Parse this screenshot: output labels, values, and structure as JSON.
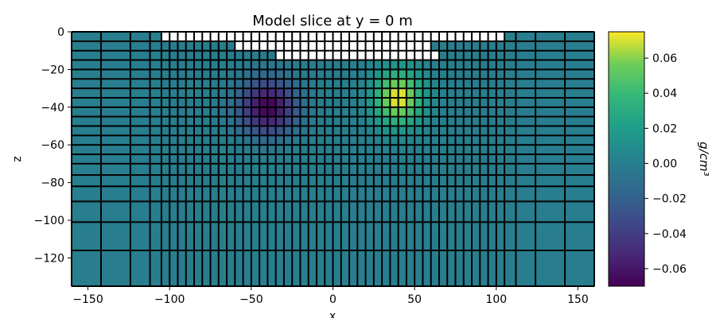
{
  "chart_data": {
    "type": "heatmap",
    "title": "Model slice at y = 0 m",
    "xlabel": "x",
    "ylabel": "z",
    "xlim": [
      -160,
      160
    ],
    "ylim": [
      -135,
      0
    ],
    "x_ticks": [
      -150,
      -100,
      -50,
      0,
      50,
      100,
      150
    ],
    "x_tick_labels": [
      "−150",
      "−100",
      "−50",
      "0",
      "50",
      "100",
      "150"
    ],
    "y_ticks": [
      0,
      -20,
      -40,
      -60,
      -80,
      -100,
      -120
    ],
    "y_tick_labels": [
      "0",
      "−20",
      "−40",
      "−60",
      "−80",
      "−100",
      "−120"
    ],
    "colormap": "viridis",
    "grid_lines": true,
    "grid_line_color": "#000000",
    "inactive_color": "#ffffff",
    "background_value": 0.0,
    "x_edges": [
      -160,
      -142,
      -124,
      -112,
      -105,
      -100,
      -95,
      -90,
      -85,
      -80,
      -75,
      -70,
      -65,
      -60,
      -55,
      -50,
      -45,
      -40,
      -35,
      -30,
      -25,
      -20,
      -15,
      -10,
      -5,
      0,
      5,
      10,
      15,
      20,
      25,
      30,
      35,
      40,
      45,
      50,
      55,
      60,
      65,
      70,
      75,
      80,
      85,
      90,
      95,
      100,
      105,
      112,
      124,
      142,
      160
    ],
    "z_edges": [
      0,
      -5,
      -10,
      -15,
      -20,
      -25,
      -30,
      -35,
      -40,
      -45,
      -50,
      -55,
      -60,
      -65,
      -70,
      -76,
      -82,
      -90,
      -101,
      -116,
      -135
    ],
    "topography": [
      {
        "x_range": [
          -105,
          105
        ],
        "z_range": [
          0,
          -5
        ]
      },
      {
        "x_range": [
          -60,
          60
        ],
        "z_range": [
          -5,
          -10
        ]
      },
      {
        "x_range": [
          -35,
          65
        ],
        "z_range": [
          -10,
          -15
        ]
      }
    ],
    "anomalies": [
      {
        "x_center": -40,
        "z_center": -40,
        "sigma_x": 12,
        "sigma_z": 10,
        "peak_value": -0.07
      },
      {
        "x_center": 40,
        "z_center": -35,
        "sigma_x": 10,
        "sigma_z": 10,
        "peak_value": 0.075
      }
    ],
    "colorbar": {
      "min": -0.07,
      "max": 0.075,
      "ticks": [
        0.06,
        0.04,
        0.02,
        0.0,
        -0.02,
        -0.04,
        -0.06
      ],
      "tick_labels": [
        "0.06",
        "0.04",
        "0.02",
        "0.00",
        "−0.02",
        "−0.04",
        "−0.06"
      ],
      "label": "g/cm³"
    }
  }
}
